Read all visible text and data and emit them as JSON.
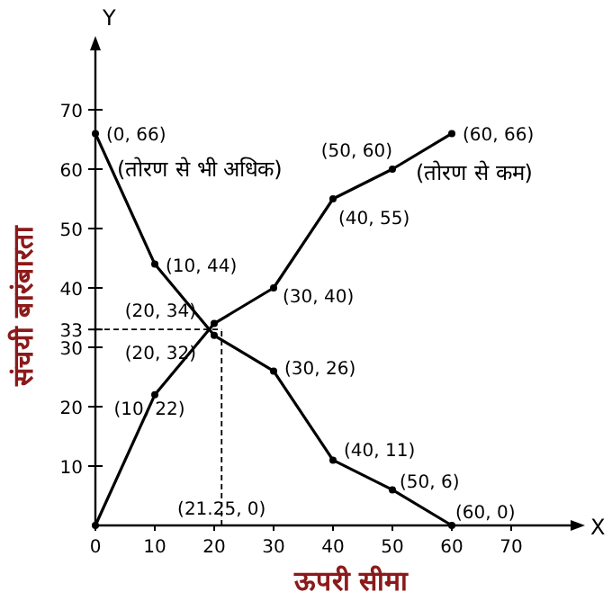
{
  "chart_data": {
    "type": "line",
    "xlabel": "ऊपरी सीमा",
    "ylabel": "संचयी बारंबारता",
    "xlim": [
      0,
      80
    ],
    "ylim": [
      0,
      80
    ],
    "xticks": [
      0,
      10,
      20,
      30,
      40,
      50,
      60,
      70
    ],
    "yticks": [
      10,
      20,
      30,
      33,
      40,
      50,
      60,
      70
    ],
    "grid": false,
    "legend": false,
    "marker": "circle",
    "line_style": "solid",
    "series": [
      {
        "name": "(तोरण से भी अधिक)",
        "color": "#000000",
        "x": [
          0,
          10,
          20,
          30,
          40,
          50,
          60
        ],
        "values": [
          66,
          44,
          32,
          26,
          11,
          6,
          0
        ]
      },
      {
        "name": "(तोरण से कम)",
        "color": "#000000",
        "x": [
          0,
          10,
          20,
          30,
          40,
          50,
          60
        ],
        "values": [
          0,
          22,
          34,
          40,
          55,
          60,
          66
        ]
      }
    ],
    "ref_lines": [
      {
        "axis": "x",
        "value": 21.25,
        "line_style": "dashed",
        "color": "#000000"
      },
      {
        "axis": "y",
        "value": 33,
        "line_style": "dashed",
        "color": "#000000"
      }
    ],
    "annotations": [
      "Y",
      "X",
      {
        "text": "(0, 66)",
        "x": 0,
        "y": 66
      },
      {
        "text": "(10, 44)",
        "x": 10,
        "y": 44
      },
      {
        "text": "(20, 34)",
        "x": 20,
        "y": 34
      },
      {
        "text": "(20, 32)",
        "x": 20,
        "y": 32
      },
      {
        "text": "(30, 26)",
        "x": 30,
        "y": 26
      },
      {
        "text": "(40, 11)",
        "x": 40,
        "y": 11
      },
      {
        "text": "(50, 6)",
        "x": 50,
        "y": 6
      },
      {
        "text": "(60, 0)",
        "x": 60,
        "y": 0
      },
      {
        "text": "(21.25, 0)",
        "x": 21.25,
        "y": 0
      },
      {
        "text": "(10, 22)",
        "x": 10,
        "y": 22
      },
      {
        "text": "(30, 40)",
        "x": 30,
        "y": 40
      },
      {
        "text": "(40, 55)",
        "x": 40,
        "y": 55
      },
      {
        "text": "(50, 60)",
        "x": 50,
        "y": 60
      },
      {
        "text": "(60, 66)",
        "x": 60,
        "y": 66
      }
    ]
  }
}
